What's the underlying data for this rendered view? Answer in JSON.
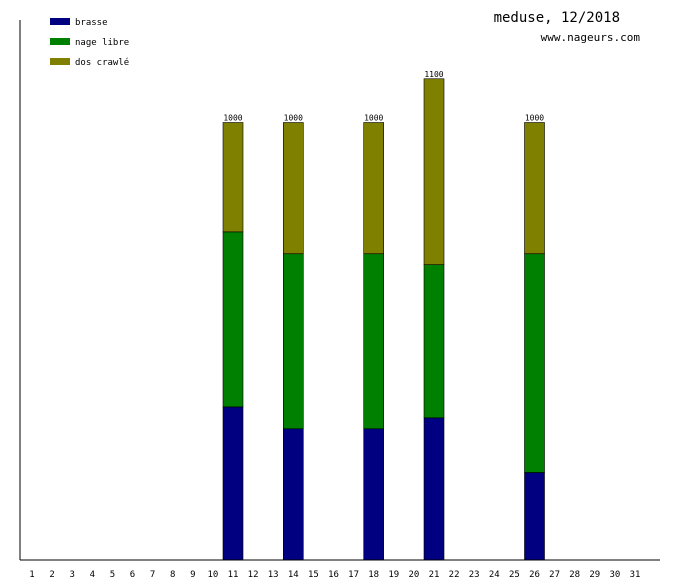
{
  "chart_data": {
    "type": "bar",
    "stacked": true,
    "title": "meduse, 12/2018",
    "subtitle": "www.nageurs.com",
    "categories": [
      "1",
      "2",
      "3",
      "4",
      "5",
      "6",
      "7",
      "8",
      "9",
      "10",
      "11",
      "12",
      "13",
      "14",
      "15",
      "16",
      "17",
      "18",
      "19",
      "20",
      "21",
      "22",
      "23",
      "24",
      "25",
      "26",
      "27",
      "28",
      "29",
      "30",
      "31"
    ],
    "ylim": [
      0,
      1200
    ],
    "grid": false,
    "legend_position": "top-left",
    "series": [
      {
        "name": "brasse",
        "color": "#000080",
        "values": [
          0,
          0,
          0,
          0,
          0,
          0,
          0,
          0,
          0,
          0,
          350,
          0,
          0,
          300,
          0,
          0,
          0,
          300,
          0,
          0,
          325,
          0,
          0,
          0,
          0,
          200,
          0,
          0,
          0,
          0,
          0
        ]
      },
      {
        "name": "nage libre",
        "color": "#008000",
        "values": [
          0,
          0,
          0,
          0,
          0,
          0,
          0,
          0,
          0,
          0,
          400,
          0,
          0,
          400,
          0,
          0,
          0,
          400,
          0,
          0,
          350,
          0,
          0,
          0,
          0,
          500,
          0,
          0,
          0,
          0,
          0
        ]
      },
      {
        "name": "dos crawlé",
        "color": "#808000",
        "values": [
          0,
          0,
          0,
          0,
          0,
          0,
          0,
          0,
          0,
          0,
          250,
          0,
          0,
          300,
          0,
          0,
          0,
          300,
          0,
          0,
          425,
          0,
          0,
          0,
          0,
          300,
          0,
          0,
          0,
          0,
          0
        ]
      }
    ],
    "totals": [
      0,
      0,
      0,
      0,
      0,
      0,
      0,
      0,
      0,
      0,
      1000,
      0,
      0,
      1000,
      0,
      0,
      0,
      1000,
      0,
      0,
      1100,
      0,
      0,
      0,
      0,
      1000,
      0,
      0,
      0,
      0,
      0
    ]
  }
}
